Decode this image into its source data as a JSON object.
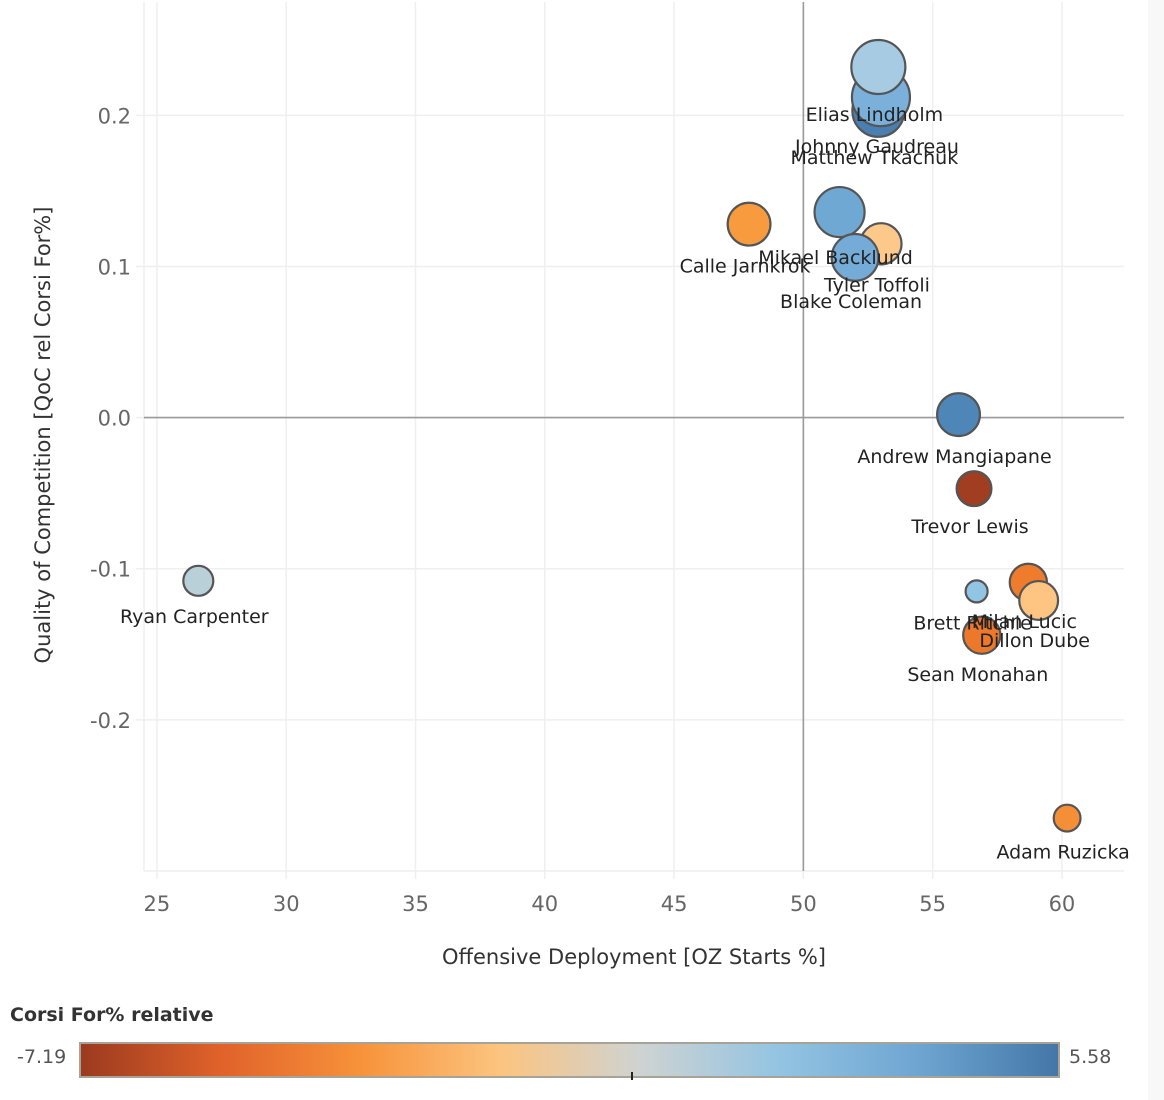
{
  "chart_data": {
    "type": "scatter",
    "subtype": "bubble",
    "title": "",
    "xlabel": "Offensive Deployment [OZ Starts %]",
    "ylabel": "Quality of Competition [QoC rel Corsi For%]",
    "xlim": [
      24.5,
      62.4
    ],
    "ylim": [
      -0.3,
      0.275
    ],
    "x_ticks": [
      25,
      30,
      35,
      40,
      45,
      50,
      55,
      60
    ],
    "x_tick_labels": [
      "25",
      "30",
      "35",
      "40",
      "45",
      "50",
      "55",
      "60"
    ],
    "y_ticks": [
      0.2,
      0.1,
      0.0,
      -0.1,
      -0.2
    ],
    "y_tick_labels": [
      "0.2",
      "0.1",
      "0.0",
      "-0.1",
      "-0.2"
    ],
    "grid": true,
    "reference_lines": {
      "x": 50,
      "y": 0
    },
    "color_legend": {
      "title": "Corsi For% relative",
      "min": -7.19,
      "max": 5.58,
      "min_label": "-7.19",
      "max_label": "5.58",
      "placement": "bottom",
      "stops": [
        "#9c3a1f",
        "#e0622a",
        "#f7923a",
        "#fcc47f",
        "#cfd3d2",
        "#93c4e2",
        "#6ea5d1",
        "#4477a8"
      ]
    },
    "points": [
      {
        "name": "Elias Lindholm",
        "x": 52.9,
        "y": 0.232,
        "size": 0.9,
        "color_value": 1.2,
        "color": "#a6cbe2"
      },
      {
        "name": "Johnny Gaudreau",
        "x": 53.0,
        "y": 0.212,
        "size": 1.0,
        "color_value": 3.2,
        "color": "#7ab0d9"
      },
      {
        "name": "Matthew Tkachuk",
        "x": 52.9,
        "y": 0.203,
        "size": 0.85,
        "color_value": 5.0,
        "color": "#4a7fb2"
      },
      {
        "name": "Calle Jarnkrok",
        "x": 47.9,
        "y": 0.128,
        "size": 0.62,
        "color_value": -2.8,
        "color": "#f89b3e"
      },
      {
        "name": "Mikael Backlund",
        "x": 51.4,
        "y": 0.136,
        "size": 0.8,
        "color_value": 3.0,
        "color": "#70a8d4"
      },
      {
        "name": "Tyler Toffoli",
        "x": 53.0,
        "y": 0.115,
        "size": 0.58,
        "color_value": -1.0,
        "color": "#fcc98b"
      },
      {
        "name": "Blake Coleman",
        "x": 52.0,
        "y": 0.106,
        "size": 0.72,
        "color_value": 2.8,
        "color": "#74abd7"
      },
      {
        "name": "Andrew Mangiapane",
        "x": 56.0,
        "y": 0.002,
        "size": 0.62,
        "color_value": 4.8,
        "color": "#4f86b8"
      },
      {
        "name": "Trevor Lewis",
        "x": 56.6,
        "y": -0.047,
        "size": 0.42,
        "color_value": -6.8,
        "color": "#a13e22"
      },
      {
        "name": "Ryan Carpenter",
        "x": 26.6,
        "y": -0.108,
        "size": 0.3,
        "color_value": 0.4,
        "color": "#b9d0d8"
      },
      {
        "name": "Brett Ritchie",
        "x": 56.7,
        "y": -0.115,
        "size": 0.1,
        "color_value": 1.5,
        "color": "#92c5e4"
      },
      {
        "name": "Milan Lucic",
        "x": 58.7,
        "y": -0.109,
        "size": 0.48,
        "color_value": -4.2,
        "color": "#ef7c2d"
      },
      {
        "name": "Dillon Dube",
        "x": 59.1,
        "y": -0.121,
        "size": 0.52,
        "color_value": -1.2,
        "color": "#fdc482"
      },
      {
        "name": "Sean Monahan",
        "x": 56.9,
        "y": -0.144,
        "size": 0.48,
        "color_value": -4.3,
        "color": "#ec782b"
      },
      {
        "name": "Adam Ruzicka",
        "x": 60.2,
        "y": -0.265,
        "size": 0.22,
        "color_value": -3.3,
        "color": "#f58f37"
      }
    ]
  }
}
